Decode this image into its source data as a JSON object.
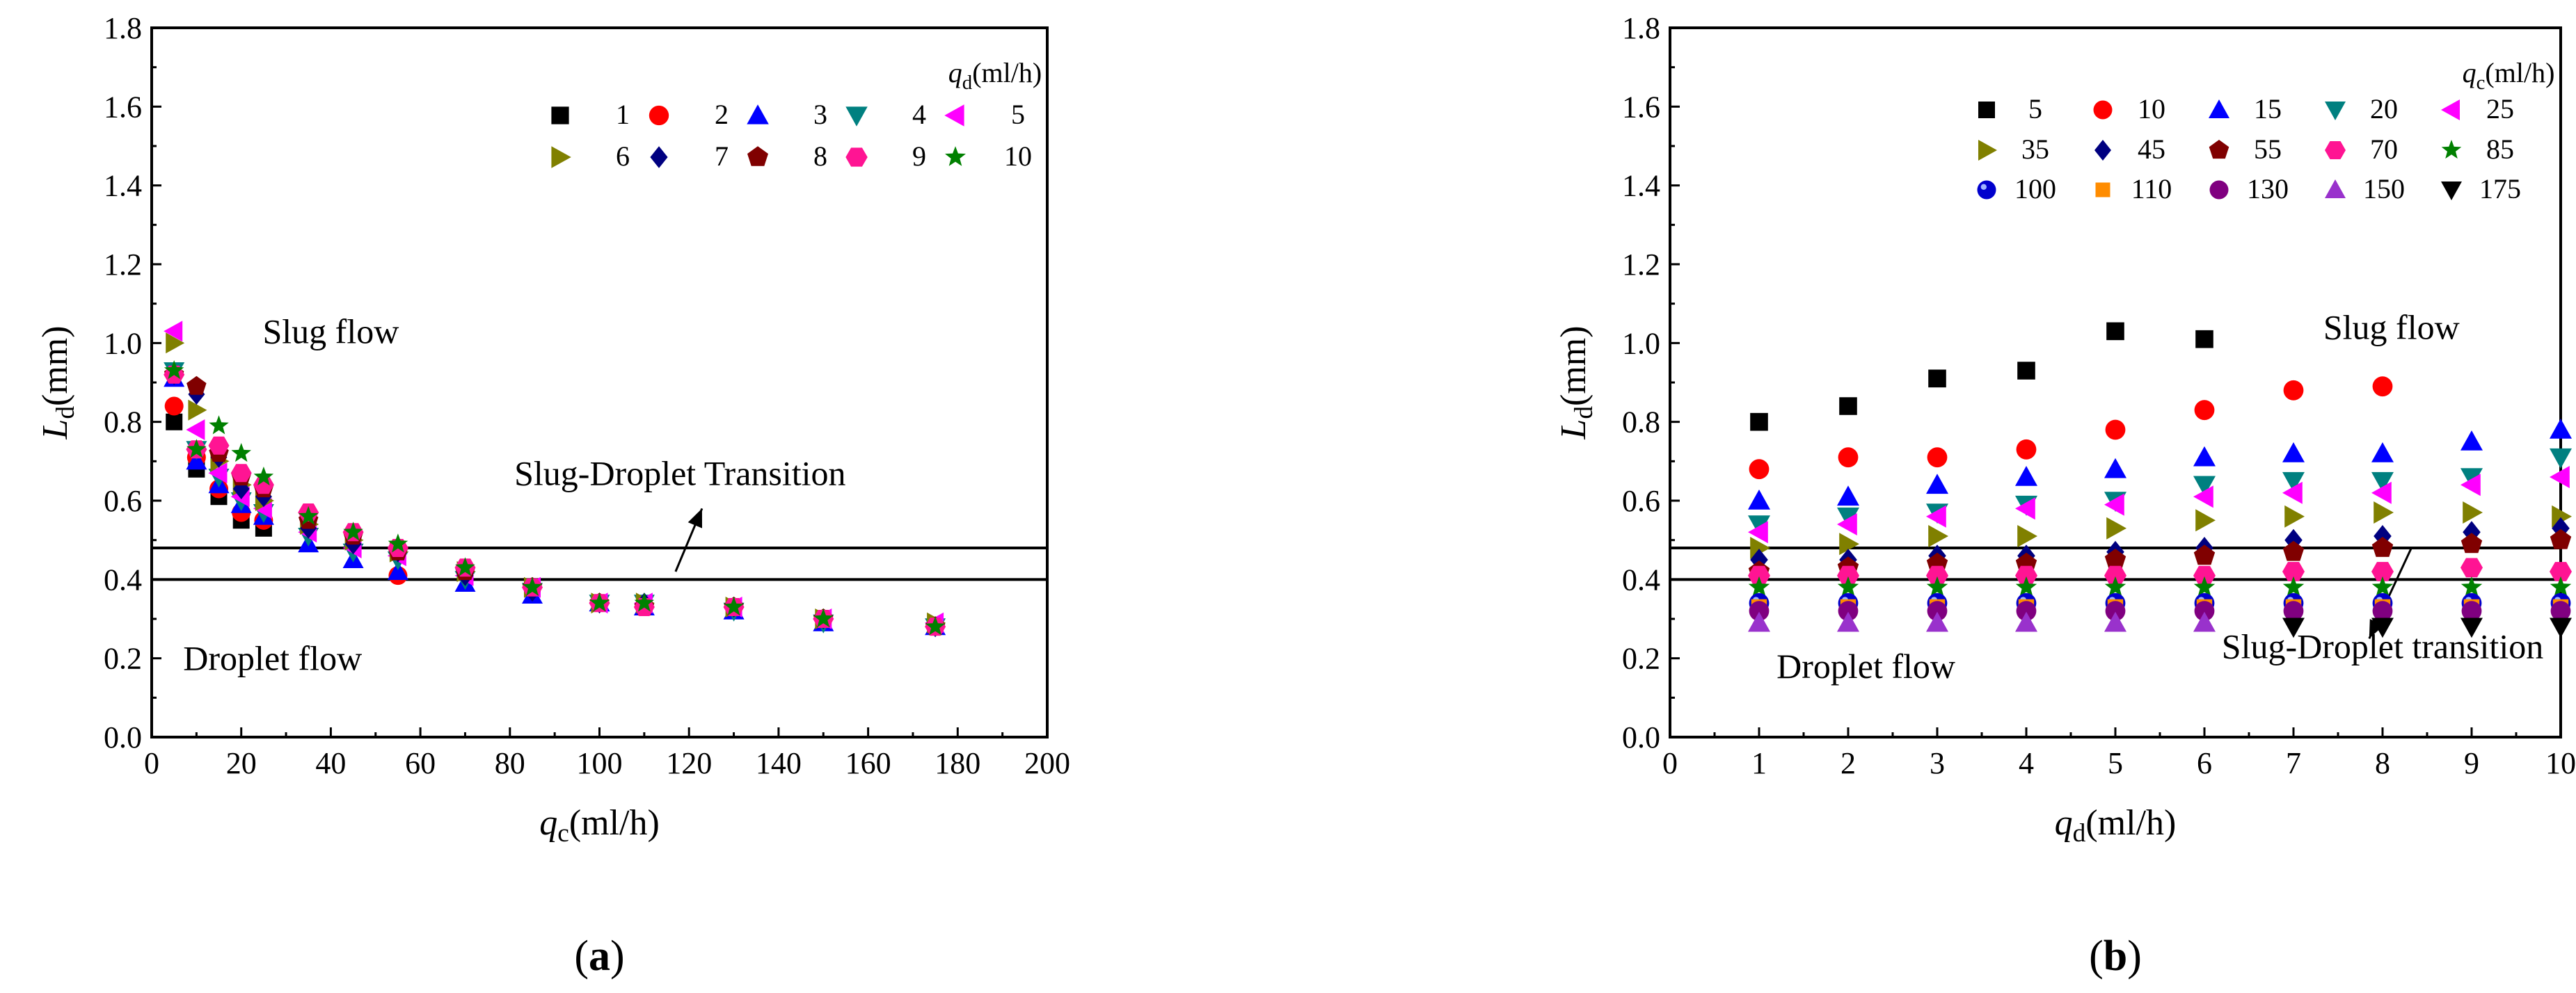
{
  "chart_data": [
    {
      "type": "scatter",
      "panel_label": "a",
      "xlabel": {
        "main": "q",
        "sub": "c",
        "unit": "(ml/h)"
      },
      "ylabel": {
        "main": "L",
        "sub": "d",
        "unit": "(mm)"
      },
      "xlim": [
        0,
        200
      ],
      "ylim": [
        0,
        1.8
      ],
      "xticks": [
        "0",
        "20",
        "40",
        "60",
        "80",
        "100",
        "120",
        "140",
        "160",
        "180",
        "200"
      ],
      "yticks": [
        "0.0",
        "0.2",
        "0.4",
        "0.6",
        "0.8",
        "1.0",
        "1.2",
        "1.4",
        "1.6",
        "1.8"
      ],
      "legend_title": {
        "main": "q",
        "sub": "d",
        "unit": "(ml/h)"
      },
      "reference_lines": [
        0.48,
        0.4
      ],
      "annotations": [
        {
          "text": "Slug flow",
          "x": 40,
          "y": 1.0
        },
        {
          "text": "Slug-Droplet Transition",
          "x": 118,
          "y": 0.64,
          "arrow_to": [
            117,
            0.42
          ]
        },
        {
          "text": "Droplet flow",
          "x": 27,
          "y": 0.17
        }
      ],
      "series": [
        {
          "name": "1",
          "marker": "square",
          "color": "#000000",
          "x": [
            5,
            10,
            15,
            20,
            25
          ],
          "y": [
            0.8,
            0.68,
            0.61,
            0.55,
            0.53
          ]
        },
        {
          "name": "2",
          "marker": "circle",
          "color": "#ff0000",
          "x": [
            5,
            10,
            15,
            20,
            25,
            55
          ],
          "y": [
            0.84,
            0.71,
            0.63,
            0.57,
            0.55,
            0.41
          ]
        },
        {
          "name": "3",
          "marker": "triangle",
          "color": "#0000ff",
          "x": [
            5,
            10,
            15,
            20,
            25,
            35,
            45,
            55,
            70,
            85,
            100,
            110,
            130,
            150,
            175
          ],
          "y": [
            0.91,
            0.7,
            0.64,
            0.59,
            0.56,
            0.49,
            0.45,
            0.42,
            0.39,
            0.36,
            0.34,
            0.33,
            0.32,
            0.29,
            0.28
          ]
        },
        {
          "name": "4",
          "marker": "tri-down",
          "color": "#008080",
          "x": [
            5,
            10,
            15,
            20,
            25,
            35,
            45,
            55,
            70,
            85,
            100,
            110,
            130,
            150,
            175
          ],
          "y": [
            0.93,
            0.73,
            0.66,
            0.6,
            0.57,
            0.51,
            0.47,
            0.45,
            0.4,
            0.37,
            0.34,
            0.34,
            0.32,
            0.29,
            0.28
          ]
        },
        {
          "name": "5",
          "marker": "tri-left",
          "color": "#ff00ff",
          "x": [
            5,
            10,
            15,
            20,
            25,
            35,
            45,
            55,
            70,
            85,
            100,
            110,
            130,
            150,
            175
          ],
          "y": [
            1.03,
            0.78,
            0.67,
            0.61,
            0.58,
            0.52,
            0.48,
            0.46,
            0.41,
            0.38,
            0.34,
            0.34,
            0.33,
            0.3,
            0.29
          ]
        },
        {
          "name": "6",
          "marker": "tri-right",
          "color": "#808000",
          "x": [
            5,
            10,
            15,
            20,
            25,
            35,
            45,
            55,
            70,
            85,
            100,
            110,
            130,
            150,
            175
          ],
          "y": [
            1.0,
            0.83,
            0.7,
            0.64,
            0.6,
            0.54,
            0.5,
            0.47,
            0.42,
            0.38,
            0.34,
            0.34,
            0.33,
            0.3,
            0.29
          ]
        },
        {
          "name": "7",
          "marker": "diamond",
          "color": "#000080",
          "x": [
            5,
            10,
            15,
            20,
            25,
            35,
            45,
            55,
            70,
            85,
            100,
            110,
            130,
            150,
            175
          ],
          "y": [
            0.92,
            0.87,
            0.71,
            0.63,
            0.61,
            0.53,
            0.49,
            0.47,
            0.41,
            0.37,
            0.34,
            0.34,
            0.33,
            0.3,
            0.28
          ]
        },
        {
          "name": "8",
          "marker": "pentagon",
          "color": "#800000",
          "x": [
            5,
            10,
            15,
            20,
            25,
            35,
            45,
            55,
            70,
            85,
            100,
            110,
            130,
            150,
            175
          ],
          "y": [
            0.92,
            0.89,
            0.72,
            0.66,
            0.63,
            0.55,
            0.51,
            0.47,
            0.42,
            0.38,
            0.34,
            0.33,
            0.33,
            0.3,
            0.28
          ]
        },
        {
          "name": "9",
          "marker": "hexagon",
          "color": "#ff1493",
          "x": [
            5,
            10,
            15,
            20,
            25,
            35,
            45,
            55,
            70,
            85,
            100,
            110,
            130,
            150,
            175
          ],
          "y": [
            0.92,
            0.73,
            0.74,
            0.67,
            0.64,
            0.57,
            0.52,
            0.48,
            0.43,
            0.38,
            0.34,
            0.33,
            0.33,
            0.3,
            0.28
          ]
        },
        {
          "name": "10",
          "marker": "star",
          "color": "#008000",
          "x": [
            5,
            10,
            15,
            20,
            25,
            35,
            45,
            55,
            70,
            85,
            100,
            110,
            130,
            150,
            175
          ],
          "y": [
            0.93,
            0.73,
            0.79,
            0.72,
            0.66,
            0.56,
            0.52,
            0.49,
            0.43,
            0.38,
            0.34,
            0.34,
            0.33,
            0.3,
            0.28
          ]
        }
      ]
    },
    {
      "type": "scatter",
      "panel_label": "b",
      "xlabel": {
        "main": "q",
        "sub": "d",
        "unit": "(ml/h)"
      },
      "ylabel": {
        "main": "L",
        "sub": "d",
        "unit": "(mm)"
      },
      "xlim": [
        0,
        10
      ],
      "ylim": [
        0,
        1.8
      ],
      "xticks": [
        "0",
        "1",
        "2",
        "3",
        "4",
        "5",
        "6",
        "7",
        "8",
        "9",
        "10"
      ],
      "yticks": [
        "0.0",
        "0.2",
        "0.4",
        "0.6",
        "0.8",
        "1.0",
        "1.2",
        "1.4",
        "1.6",
        "1.8"
      ],
      "legend_title": {
        "main": "q",
        "sub": "c",
        "unit": "(ml/h)"
      },
      "reference_lines": [
        0.48,
        0.4
      ],
      "annotations": [
        {
          "text": "Slug flow",
          "x": 8.1,
          "y": 1.01
        },
        {
          "text": "Droplet flow",
          "x": 2.2,
          "y": 0.15
        },
        {
          "text": "Slug-Droplet transition",
          "x": 8.0,
          "y": 0.2,
          "arrow_to": [
            7.85,
            0.25
          ]
        }
      ],
      "series": [
        {
          "name": "5",
          "marker": "square",
          "color": "#000000",
          "x": [
            1,
            2,
            3,
            4,
            5,
            6
          ],
          "y": [
            0.8,
            0.84,
            0.91,
            0.93,
            1.03,
            1.01
          ]
        },
        {
          "name": "10",
          "marker": "circle",
          "color": "#ff0000",
          "x": [
            1,
            2,
            3,
            4,
            5,
            6,
            7,
            8
          ],
          "y": [
            0.68,
            0.71,
            0.71,
            0.73,
            0.78,
            0.83,
            0.88,
            0.89
          ]
        },
        {
          "name": "15",
          "marker": "triangle",
          "color": "#0000ff",
          "x": [
            1,
            2,
            3,
            4,
            5,
            6,
            7,
            8,
            9,
            10
          ],
          "y": [
            0.6,
            0.61,
            0.64,
            0.66,
            0.68,
            0.71,
            0.72,
            0.72,
            0.75,
            0.78
          ]
        },
        {
          "name": "20",
          "marker": "tri-down",
          "color": "#008080",
          "x": [
            1,
            2,
            3,
            4,
            5,
            6,
            7,
            8,
            9,
            10
          ],
          "y": [
            0.54,
            0.56,
            0.57,
            0.59,
            0.6,
            0.64,
            0.65,
            0.65,
            0.66,
            0.71
          ]
        },
        {
          "name": "25",
          "marker": "tri-left",
          "color": "#ff00ff",
          "x": [
            1,
            2,
            3,
            4,
            5,
            6,
            7,
            8,
            9,
            10
          ],
          "y": [
            0.52,
            0.54,
            0.56,
            0.58,
            0.59,
            0.61,
            0.62,
            0.62,
            0.64,
            0.66
          ]
        },
        {
          "name": "35",
          "marker": "tri-right",
          "color": "#808000",
          "x": [
            1,
            2,
            3,
            4,
            5,
            6,
            7,
            8,
            9,
            10
          ],
          "y": [
            0.48,
            0.49,
            0.51,
            0.51,
            0.53,
            0.55,
            0.56,
            0.57,
            0.57,
            0.56
          ]
        },
        {
          "name": "45",
          "marker": "diamond",
          "color": "#000080",
          "x": [
            1,
            2,
            3,
            4,
            5,
            6,
            7,
            8,
            9,
            10
          ],
          "y": [
            0.45,
            0.45,
            0.46,
            0.46,
            0.47,
            0.48,
            0.5,
            0.51,
            0.52,
            0.53
          ]
        },
        {
          "name": "55",
          "marker": "pentagon",
          "color": "#800000",
          "x": [
            1,
            2,
            3,
            4,
            5,
            6,
            7,
            8,
            9,
            10
          ],
          "y": [
            0.42,
            0.43,
            0.44,
            0.44,
            0.45,
            0.46,
            0.47,
            0.48,
            0.49,
            0.5
          ]
        },
        {
          "name": "70",
          "marker": "hexagon",
          "color": "#ff1493",
          "x": [
            1,
            2,
            3,
            4,
            5,
            6,
            7,
            8,
            9,
            10
          ],
          "y": [
            0.41,
            0.41,
            0.41,
            0.41,
            0.41,
            0.41,
            0.42,
            0.42,
            0.43,
            0.42
          ]
        },
        {
          "name": "85",
          "marker": "star",
          "color": "#008000",
          "x": [
            1,
            2,
            3,
            4,
            5,
            6,
            7,
            8,
            9,
            10
          ],
          "y": [
            0.38,
            0.38,
            0.38,
            0.38,
            0.38,
            0.38,
            0.38,
            0.38,
            0.38,
            0.38
          ]
        },
        {
          "name": "100",
          "marker": "ball",
          "color": "#0000cd",
          "x": [
            1,
            2,
            3,
            4,
            5,
            6,
            7,
            8,
            9,
            10
          ],
          "y": [
            0.34,
            0.34,
            0.34,
            0.34,
            0.34,
            0.34,
            0.34,
            0.34,
            0.34,
            0.34
          ]
        },
        {
          "name": "110",
          "marker": "square-sm",
          "color": "#ff8c00",
          "x": [
            1,
            2,
            3,
            4,
            5,
            6,
            7,
            8,
            9,
            10
          ],
          "y": [
            0.33,
            0.33,
            0.33,
            0.33,
            0.33,
            0.33,
            0.33,
            0.33,
            0.33,
            0.33
          ]
        },
        {
          "name": "130",
          "marker": "circle",
          "color": "#800080",
          "x": [
            1,
            2,
            3,
            4,
            5,
            6,
            7,
            8,
            9,
            10
          ],
          "y": [
            0.32,
            0.32,
            0.32,
            0.32,
            0.32,
            0.32,
            0.32,
            0.32,
            0.32,
            0.32
          ]
        },
        {
          "name": "150",
          "marker": "triangle",
          "color": "#9932cc",
          "x": [
            1,
            2,
            3,
            4,
            5,
            6
          ],
          "y": [
            0.29,
            0.29,
            0.29,
            0.29,
            0.29,
            0.29
          ]
        },
        {
          "name": "175",
          "marker": "tri-down",
          "color": "#000000",
          "x": [
            7,
            8,
            9,
            10
          ],
          "y": [
            0.28,
            0.28,
            0.28,
            0.28
          ]
        }
      ]
    }
  ]
}
